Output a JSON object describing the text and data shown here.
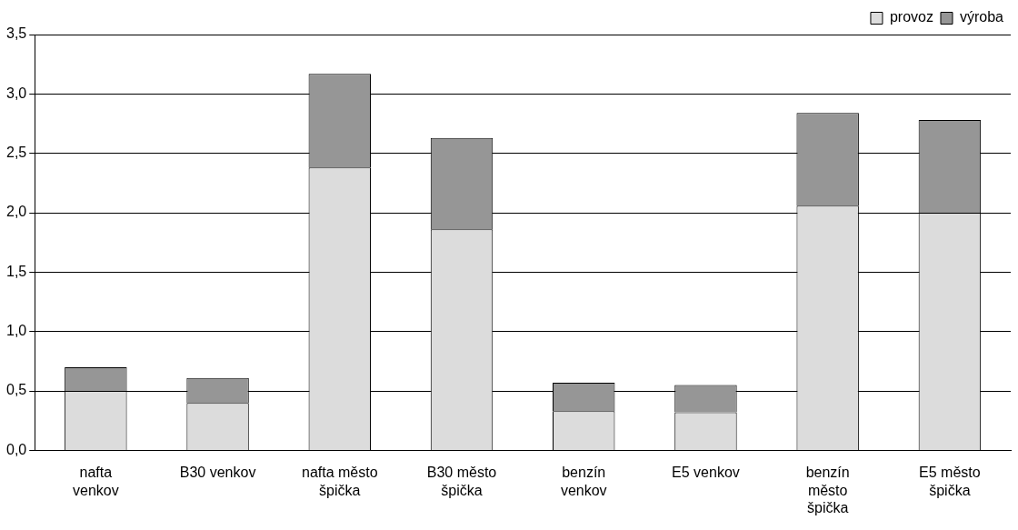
{
  "chart_data": {
    "type": "bar",
    "stacked": true,
    "categories": [
      "nafta\nvenkov",
      "B30 venkov",
      "nafta město\nšpička",
      "B30 město\nšpička",
      "benzín\nvenkov",
      "E5 venkov",
      "benzín\nměsto\nšpička",
      "E5 město\nšpička"
    ],
    "series": [
      {
        "name": "provoz",
        "color": "#dcdcdc",
        "values": [
          0.5,
          0.4,
          2.38,
          1.86,
          0.33,
          0.32,
          2.06,
          2.0
        ]
      },
      {
        "name": "výroba",
        "color": "#969696",
        "values": [
          0.2,
          0.21,
          0.79,
          0.77,
          0.24,
          0.23,
          0.78,
          0.78
        ]
      }
    ],
    "ylim": [
      0,
      3.5
    ],
    "yticks": [
      {
        "value": 0,
        "label": "0,0"
      },
      {
        "value": 0.5,
        "label": "0,5"
      },
      {
        "value": 1,
        "label": "1,0"
      },
      {
        "value": 1.5,
        "label": "1,5"
      },
      {
        "value": 2,
        "label": "2,0"
      },
      {
        "value": 2.5,
        "label": "2,5"
      },
      {
        "value": 3,
        "label": "3,0"
      },
      {
        "value": 3.5,
        "label": "3,5"
      }
    ],
    "grid": "y",
    "legend": "top right"
  }
}
